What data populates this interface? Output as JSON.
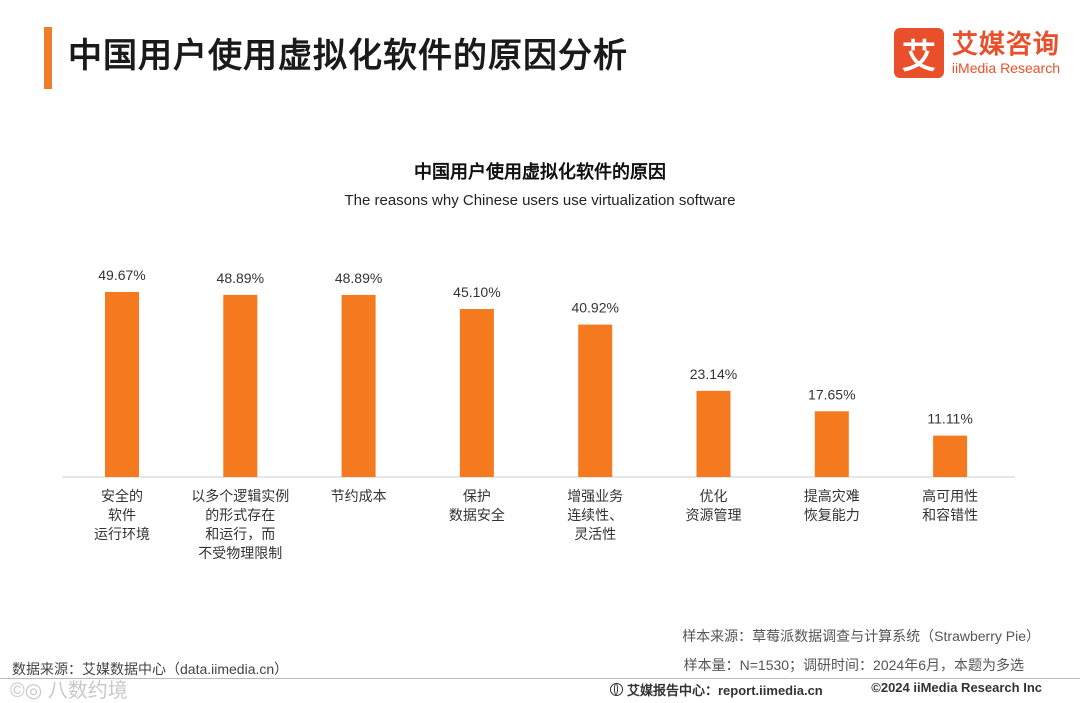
{
  "page": {
    "title": "中国用户使用虚拟化软件的原因分析"
  },
  "logo": {
    "mark": "艾",
    "name_cn": "艾媒咨询",
    "name_en": "iiMedia Research"
  },
  "colors": {
    "accent": "#f07d2a",
    "bar": "#f57a1f",
    "logo": "#e84f2a"
  },
  "chart_data": {
    "type": "bar",
    "title": "中国用户使用虚拟化软件的原因",
    "subtitle": "The reasons why Chinese users use virtualization software",
    "categories": [
      [
        "安全的",
        "软件",
        "运行环境"
      ],
      [
        "以多个逻辑实例",
        "的形式存在",
        "和运行，而",
        "不受物理限制"
      ],
      [
        "节约成本"
      ],
      [
        "保护",
        "数据安全"
      ],
      [
        "增强业务",
        "连续性、",
        "灵活性"
      ],
      [
        "优化",
        "资源管理"
      ],
      [
        "提高灾难",
        "恢复能力"
      ],
      [
        "高可用性",
        "和容错性"
      ]
    ],
    "values": [
      49.67,
      48.89,
      48.89,
      45.1,
      40.92,
      23.14,
      17.65,
      11.11
    ],
    "value_labels": [
      "49.67%",
      "48.89%",
      "48.89%",
      "45.10%",
      "40.92%",
      "23.14%",
      "17.65%",
      "11.11%"
    ],
    "unit": "%",
    "ylim": [
      0,
      60
    ],
    "grid": false,
    "legend": "none"
  },
  "notes": {
    "source": "样本来源：草莓派数据调查与计算系统（Strawberry Pie）",
    "sample": "样本量：N=1530；调研时间：2024年6月，本题为多选",
    "data_source": "数据来源：艾媒数据中心（data.iimedia.cn）"
  },
  "footer": {
    "report_center": "艾媒报告中心：report.iimedia.cn",
    "copyright": "©2024  iiMedia Research  Inc"
  },
  "watermark": "©◎ 八数约境"
}
